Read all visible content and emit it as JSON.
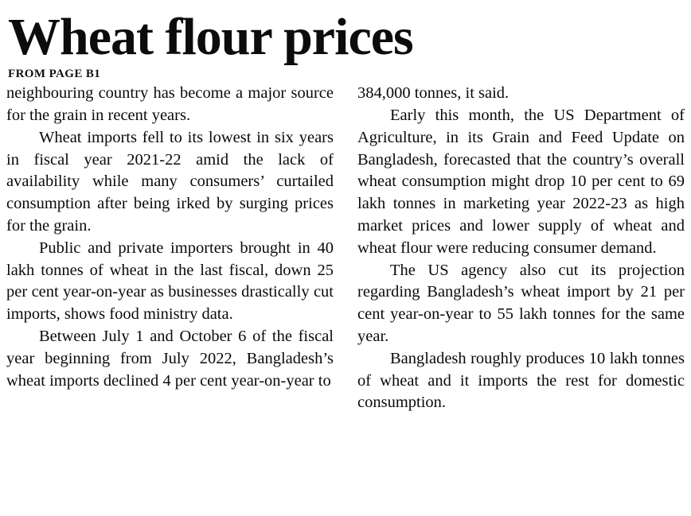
{
  "article": {
    "title": "Wheat flour prices",
    "kicker": "FROM PAGE B1",
    "columns": {
      "left": [
        "neighbouring country has become a major source for the grain in recent years.",
        "Wheat imports fell to its lowest in six years in fiscal year 2021-22 amid the lack of availability while many consumers’ curtailed consumption after being irked by surging prices for the grain.",
        "Public and private importers brought in 40 lakh tonnes of wheat in the last fiscal, down 25 per cent year-on-year as businesses drastically cut imports, shows food ministry data.",
        "Between July 1 and October 6 of the fiscal year beginning from July 2022, Bangladesh’s wheat imports declined 4 per cent year-on-year to"
      ],
      "right": [
        "384,000 tonnes, it said.",
        "Early this month, the US Department of Agriculture, in its Grain and Feed Update on Bangladesh, forecasted that the country’s overall wheat consumption might drop 10 per cent to 69 lakh tonnes in marketing year 2022-23 as high market prices and lower supply of wheat and wheat flour were reducing consumer demand.",
        "The US agency also cut its projection regarding Bangladesh’s wheat import by 21 per cent year-on-year to 55 lakh tonnes for the same year.",
        "Bangladesh roughly produces 10 lakh tonnes of wheat and it imports the rest for domestic consumption."
      ]
    }
  }
}
